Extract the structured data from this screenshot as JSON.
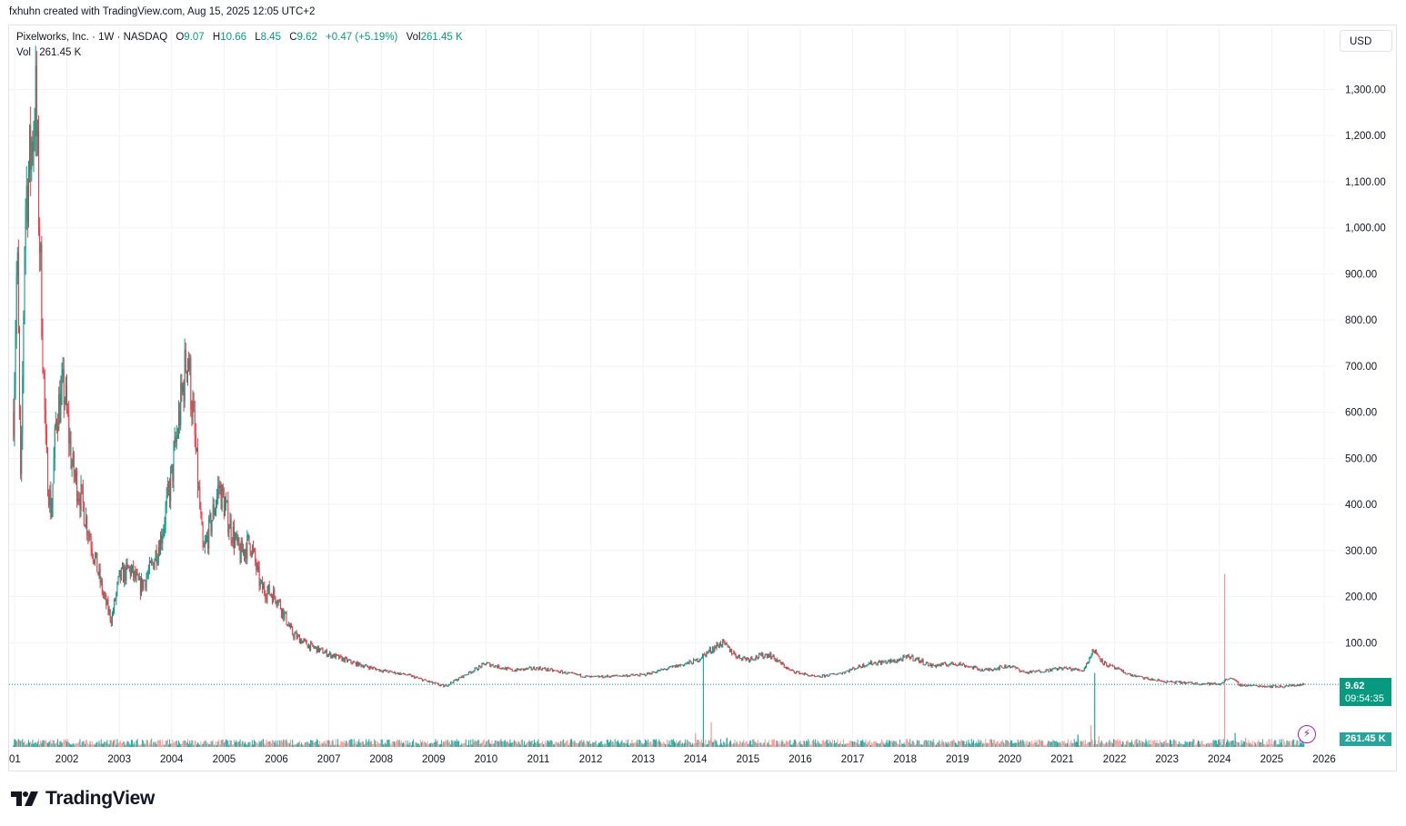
{
  "header": {
    "attribution": "fxhuhn created with TradingView.com, Aug 15, 2025 12:05 UTC+2"
  },
  "legend": {
    "symbol": "Pixelworks, Inc. · 1W · NASDAQ",
    "o_label": "O",
    "o_value": "9.07",
    "h_label": "H",
    "h_value": "10.66",
    "l_label": "L",
    "l_value": "8.45",
    "c_label": "C",
    "c_value": "9.62",
    "change": "+0.47 (+5.19%)",
    "vol_label": "Vol",
    "vol_value": "261.45 K"
  },
  "volume_legend": {
    "label": "Vol",
    "value": "261.45 K"
  },
  "currency": "USD",
  "price_tag": {
    "price": "9.62",
    "countdown": "09:54:35"
  },
  "volume_tag": "261.45 K",
  "brand": {
    "name": "TradingView"
  },
  "colors": {
    "up": "#089981",
    "down": "#f23645",
    "vol_up": "#26a69a",
    "vol_down": "#ef9a9a",
    "grid": "#f0f3fa",
    "accent": "#9c27b0"
  },
  "chart_data": {
    "type": "candlestick",
    "title": "Pixelworks, Inc. · 1W · NASDAQ",
    "y_ticks": [
      "100.00",
      "200.00",
      "300.00",
      "400.00",
      "500.00",
      "600.00",
      "700.00",
      "800.00",
      "900.00",
      "1,000.00",
      "1,100.00",
      "1,200.00",
      "1,300.00"
    ],
    "y_tick_values": [
      100,
      200,
      300,
      400,
      500,
      600,
      700,
      800,
      900,
      1000,
      1100,
      1200,
      1300
    ],
    "x_ticks": [
      "01",
      "2002",
      "2003",
      "2004",
      "2005",
      "2006",
      "2007",
      "2008",
      "2009",
      "2010",
      "2011",
      "2012",
      "2013",
      "2014",
      "2015",
      "2016",
      "2017",
      "2018",
      "2019",
      "2020",
      "2021",
      "2022",
      "2023",
      "2024",
      "2025",
      "2026"
    ],
    "x_tick_values": [
      2001,
      2002,
      2003,
      2004,
      2005,
      2006,
      2007,
      2008,
      2009,
      2010,
      2011,
      2012,
      2013,
      2014,
      2015,
      2016,
      2017,
      2018,
      2019,
      2020,
      2021,
      2022,
      2023,
      2024,
      2025,
      2026
    ],
    "grid": true,
    "last_price": 9.62,
    "price_path": [
      [
        2000.98,
        600
      ],
      [
        2001.05,
        950
      ],
      [
        2001.12,
        400
      ],
      [
        2001.2,
        1050
      ],
      [
        2001.3,
        1150
      ],
      [
        2001.4,
        1280
      ],
      [
        2001.5,
        900
      ],
      [
        2001.6,
        500
      ],
      [
        2001.7,
        380
      ],
      [
        2001.8,
        600
      ],
      [
        2001.95,
        650
      ],
      [
        2002.1,
        480
      ],
      [
        2002.3,
        400
      ],
      [
        2002.5,
        300
      ],
      [
        2002.7,
        200
      ],
      [
        2002.85,
        150
      ],
      [
        2003.0,
        240
      ],
      [
        2003.2,
        260
      ],
      [
        2003.4,
        220
      ],
      [
        2003.6,
        260
      ],
      [
        2003.8,
        330
      ],
      [
        2004.0,
        460
      ],
      [
        2004.2,
        640
      ],
      [
        2004.3,
        740
      ],
      [
        2004.4,
        600
      ],
      [
        2004.5,
        450
      ],
      [
        2004.6,
        290
      ],
      [
        2004.75,
        360
      ],
      [
        2004.9,
        440
      ],
      [
        2005.1,
        360
      ],
      [
        2005.3,
        290
      ],
      [
        2005.5,
        320
      ],
      [
        2005.7,
        220
      ],
      [
        2006.0,
        200
      ],
      [
        2006.3,
        120
      ],
      [
        2006.6,
        95
      ],
      [
        2007.0,
        75
      ],
      [
        2007.5,
        55
      ],
      [
        2008.0,
        40
      ],
      [
        2008.5,
        30
      ],
      [
        2009.0,
        12
      ],
      [
        2009.2,
        5
      ],
      [
        2009.6,
        30
      ],
      [
        2010.0,
        55
      ],
      [
        2010.5,
        40
      ],
      [
        2011.0,
        45
      ],
      [
        2011.5,
        35
      ],
      [
        2012.0,
        25
      ],
      [
        2012.5,
        28
      ],
      [
        2013.0,
        30
      ],
      [
        2013.5,
        45
      ],
      [
        2014.0,
        60
      ],
      [
        2014.3,
        85
      ],
      [
        2014.5,
        100
      ],
      [
        2014.8,
        70
      ],
      [
        2015.0,
        65
      ],
      [
        2015.4,
        75
      ],
      [
        2015.8,
        40
      ],
      [
        2016.3,
        25
      ],
      [
        2016.8,
        35
      ],
      [
        2017.3,
        55
      ],
      [
        2017.8,
        60
      ],
      [
        2018.1,
        70
      ],
      [
        2018.5,
        50
      ],
      [
        2019.0,
        55
      ],
      [
        2019.5,
        40
      ],
      [
        2020.0,
        50
      ],
      [
        2020.3,
        35
      ],
      [
        2020.7,
        40
      ],
      [
        2021.0,
        45
      ],
      [
        2021.4,
        40
      ],
      [
        2021.6,
        85
      ],
      [
        2021.8,
        55
      ],
      [
        2022.0,
        45
      ],
      [
        2022.3,
        30
      ],
      [
        2022.7,
        20
      ],
      [
        2023.0,
        15
      ],
      [
        2023.5,
        12
      ],
      [
        2024.0,
        10
      ],
      [
        2024.2,
        25
      ],
      [
        2024.4,
        8
      ],
      [
        2024.8,
        6
      ],
      [
        2025.2,
        5
      ],
      [
        2025.62,
        9.62
      ]
    ],
    "volume_spikes_k": [
      [
        2001.0,
        25
      ],
      [
        2001.5,
        20
      ],
      [
        2002.0,
        18
      ],
      [
        2003.6,
        22
      ],
      [
        2004.3,
        15
      ],
      [
        2006.0,
        10
      ],
      [
        2013.5,
        20
      ],
      [
        2014.0,
        45
      ],
      [
        2014.15,
        300
      ],
      [
        2014.3,
        80
      ],
      [
        2014.6,
        30
      ],
      [
        2015.5,
        25
      ],
      [
        2017.0,
        18
      ],
      [
        2018.5,
        15
      ],
      [
        2021.3,
        40
      ],
      [
        2021.55,
        70
      ],
      [
        2021.62,
        240
      ],
      [
        2021.7,
        35
      ],
      [
        2024.0,
        25
      ],
      [
        2024.1,
        560
      ],
      [
        2024.3,
        45
      ],
      [
        2024.5,
        30
      ],
      [
        2025.6,
        45
      ]
    ]
  }
}
